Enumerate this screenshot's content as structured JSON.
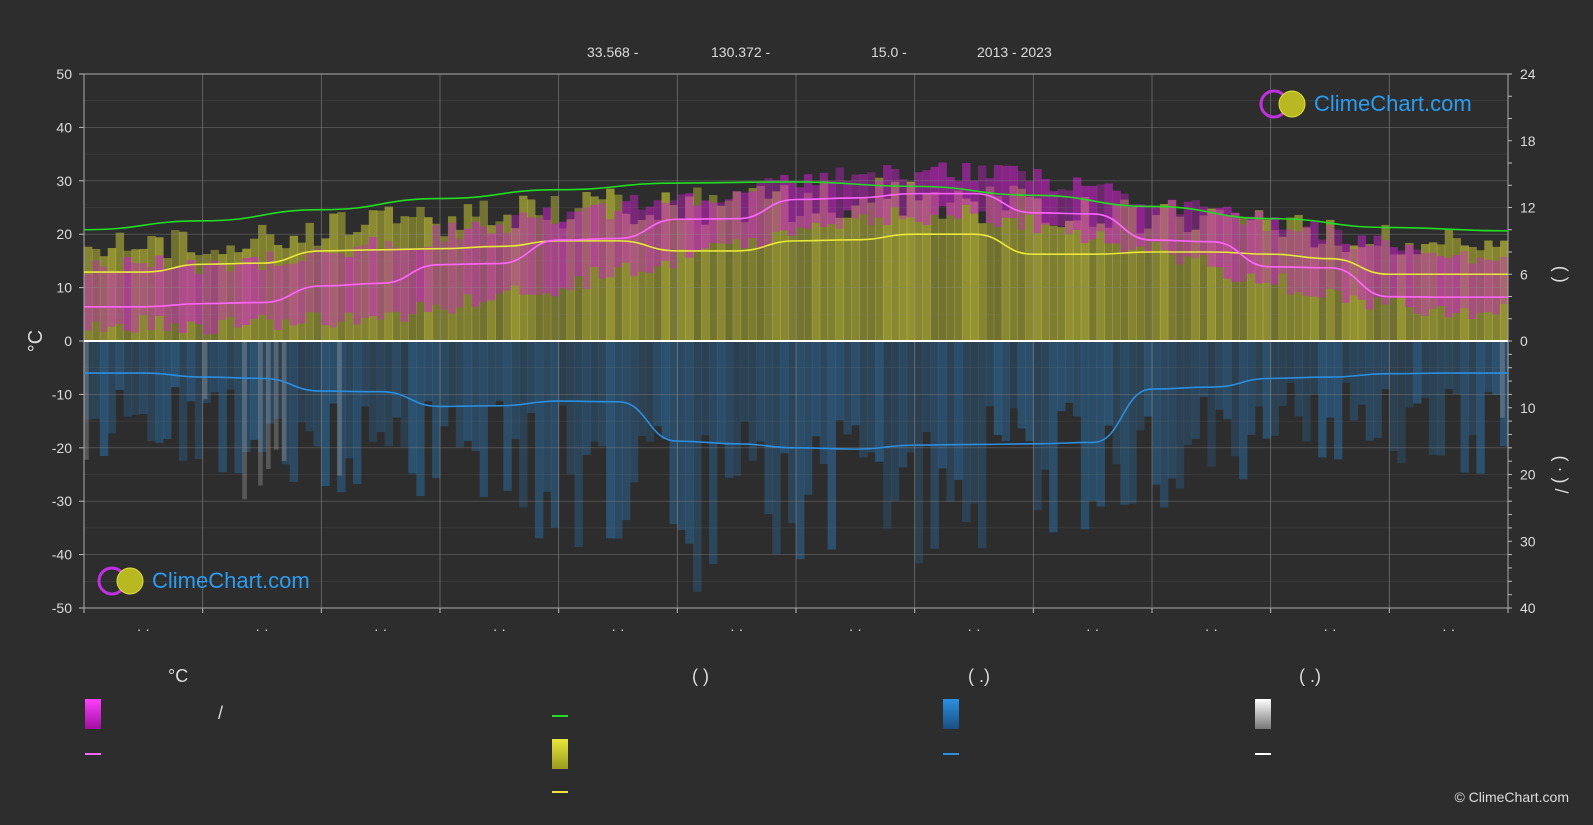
{
  "header": {
    "lat": "33.568 -",
    "lon": "130.372 -",
    "elev": "15.0 -",
    "years": "2013 - 2023"
  },
  "legend": {
    "col1_title": "°C",
    "col1_slash": "/",
    "col2_title": "(          )",
    "col3_title": "(    .)",
    "col4_title": "(    .)"
  },
  "logo_text": "ClimeChart.com",
  "copyright": "© ClimeChart.com",
  "colors": {
    "background": "#2d2d2d",
    "daylight": "#22dd22",
    "sunshine": "#e8e83a",
    "temp_mean": "#ff66ff",
    "temp_band": "#cc22cc",
    "rain": "#2b8fe0",
    "snow": "#bbbbbb",
    "grid": "#888888"
  },
  "chart_data": {
    "type": "line",
    "x_ticks": [
      "· ·",
      "· ·",
      "· ·",
      "· ·",
      "· ·",
      "· ·",
      "· ·",
      "· ·",
      "· ·",
      "· ·",
      "· ·",
      "· ·"
    ],
    "y_left": {
      "label": "°C",
      "ylim": [
        -50,
        50
      ],
      "ticks": [
        50,
        40,
        30,
        20,
        10,
        0,
        -10,
        -20,
        -30,
        -40,
        -50
      ]
    },
    "y_right_top": {
      "label": "(    )",
      "ylim": [
        0,
        24
      ],
      "ticks": [
        24,
        18,
        12,
        6,
        0
      ]
    },
    "y_right_bottom": {
      "label": "(  ·  )  /",
      "ylim": [
        0,
        40
      ],
      "ticks": [
        0,
        10,
        20,
        30,
        40
      ]
    },
    "grid": true,
    "series": [
      {
        "key": "daylight",
        "axis": "right_top",
        "x": [
          0,
          1,
          2,
          3,
          4,
          5,
          6,
          7,
          8,
          9,
          10,
          11,
          12
        ],
        "values": [
          10.0,
          10.8,
          11.8,
          12.8,
          13.6,
          14.2,
          14.3,
          13.9,
          13.1,
          12.1,
          11.0,
          10.2,
          9.9
        ]
      },
      {
        "key": "sunshine",
        "axis": "right_top",
        "x": [
          0,
          0.5,
          1,
          1.5,
          2,
          2.5,
          3,
          3.5,
          4,
          4.5,
          5,
          5.5,
          6,
          6.5,
          7,
          7.5,
          8,
          8.5,
          9,
          9.5,
          10,
          10.5,
          11,
          11.5,
          12
        ],
        "values": [
          6.2,
          6.2,
          6.9,
          7.0,
          8.1,
          8.2,
          8.3,
          8.5,
          9.0,
          9.0,
          8.1,
          8.1,
          9.0,
          9.1,
          9.6,
          9.6,
          7.8,
          7.8,
          8.0,
          8.0,
          7.8,
          7.4,
          6.0,
          6.0,
          6.0
        ]
      },
      {
        "key": "temp_mean",
        "axis": "left",
        "x": [
          0,
          0.5,
          1,
          1.5,
          2,
          2.5,
          3,
          3.5,
          4,
          4.5,
          5,
          5.5,
          6,
          6.5,
          7,
          7.5,
          8,
          8.5,
          9,
          9.5,
          10,
          10.5,
          11,
          11.5,
          12
        ],
        "values": [
          6.4,
          6.4,
          7.0,
          7.2,
          10.3,
          10.8,
          14.3,
          14.5,
          18.9,
          19.2,
          22.8,
          22.9,
          26.5,
          26.8,
          27.6,
          27.6,
          24.0,
          23.8,
          18.9,
          18.6,
          13.9,
          13.7,
          8.3,
          8.2,
          8.2
        ]
      },
      {
        "key": "rain_mean",
        "axis": "right_bottom",
        "x": [
          0,
          0.5,
          1,
          1.5,
          2,
          2.5,
          3,
          3.5,
          4,
          4.5,
          5,
          5.5,
          6,
          6.5,
          7,
          7.5,
          8,
          8.5,
          9,
          9.5,
          10,
          10.5,
          11,
          11.5,
          12
        ],
        "values": [
          4.8,
          4.8,
          5.4,
          5.6,
          7.5,
          7.6,
          9.8,
          9.7,
          9.0,
          9.1,
          15.0,
          15.4,
          16.0,
          16.2,
          15.6,
          15.5,
          15.4,
          15.2,
          7.2,
          6.9,
          5.6,
          5.4,
          4.9,
          4.8,
          4.8
        ]
      }
    ],
    "bands": {
      "temp_max": [
        14,
        15,
        18,
        22,
        25,
        28,
        31,
        32,
        29,
        24,
        20,
        16
      ],
      "temp_min": [
        3,
        3,
        5,
        8,
        13,
        18,
        23,
        24,
        20,
        14,
        9,
        5
      ],
      "sunshine_fill_hours": [
        8.5,
        9.5,
        10.5,
        11.5,
        12.2,
        12.0,
        13.0,
        12.5,
        11.5,
        11.0,
        9.5,
        8.8
      ],
      "rain_daily_max": [
        18,
        22,
        25,
        28,
        34,
        40,
        38,
        32,
        30,
        22,
        18,
        20
      ]
    }
  }
}
